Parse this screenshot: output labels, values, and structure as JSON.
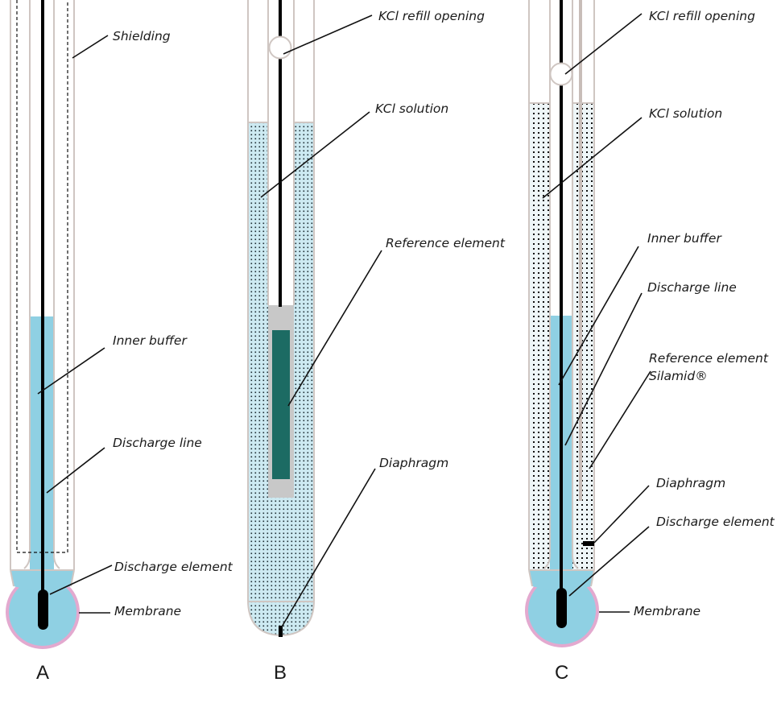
{
  "diagram_a": {
    "panel_label": "A",
    "labels": {
      "shielding": "Shielding",
      "inner_buffer": "Inner buffer",
      "discharge_line": "Discharge line",
      "discharge_element": "Discharge element",
      "membrane": "Membrane"
    }
  },
  "diagram_b": {
    "panel_label": "B",
    "labels": {
      "kcl_refill_opening": "KCl refill opening",
      "kcl_solution": "KCl solution",
      "reference_element": "Reference element",
      "diaphragm": "Diaphragm"
    }
  },
  "diagram_c": {
    "panel_label": "C",
    "labels": {
      "kcl_refill_opening": "KCl refill opening",
      "kcl_solution": "KCl solution",
      "inner_buffer": "Inner buffer",
      "discharge_line": "Discharge line",
      "reference_element_line1": "Reference element",
      "reference_element_line2": "Silamid®",
      "diaphragm": "Diaphragm",
      "discharge_element": "Discharge element",
      "membrane": "Membrane"
    }
  },
  "colors": {
    "buffer_blue": "#8fd0e3",
    "kcl_light_blue": "#cdeaf2",
    "reference_teal": "#1c6b63",
    "reference_grey": "#c8c8c8",
    "membrane_pink": "#e3a9cf",
    "tube_wall": "#cfc6c2"
  }
}
